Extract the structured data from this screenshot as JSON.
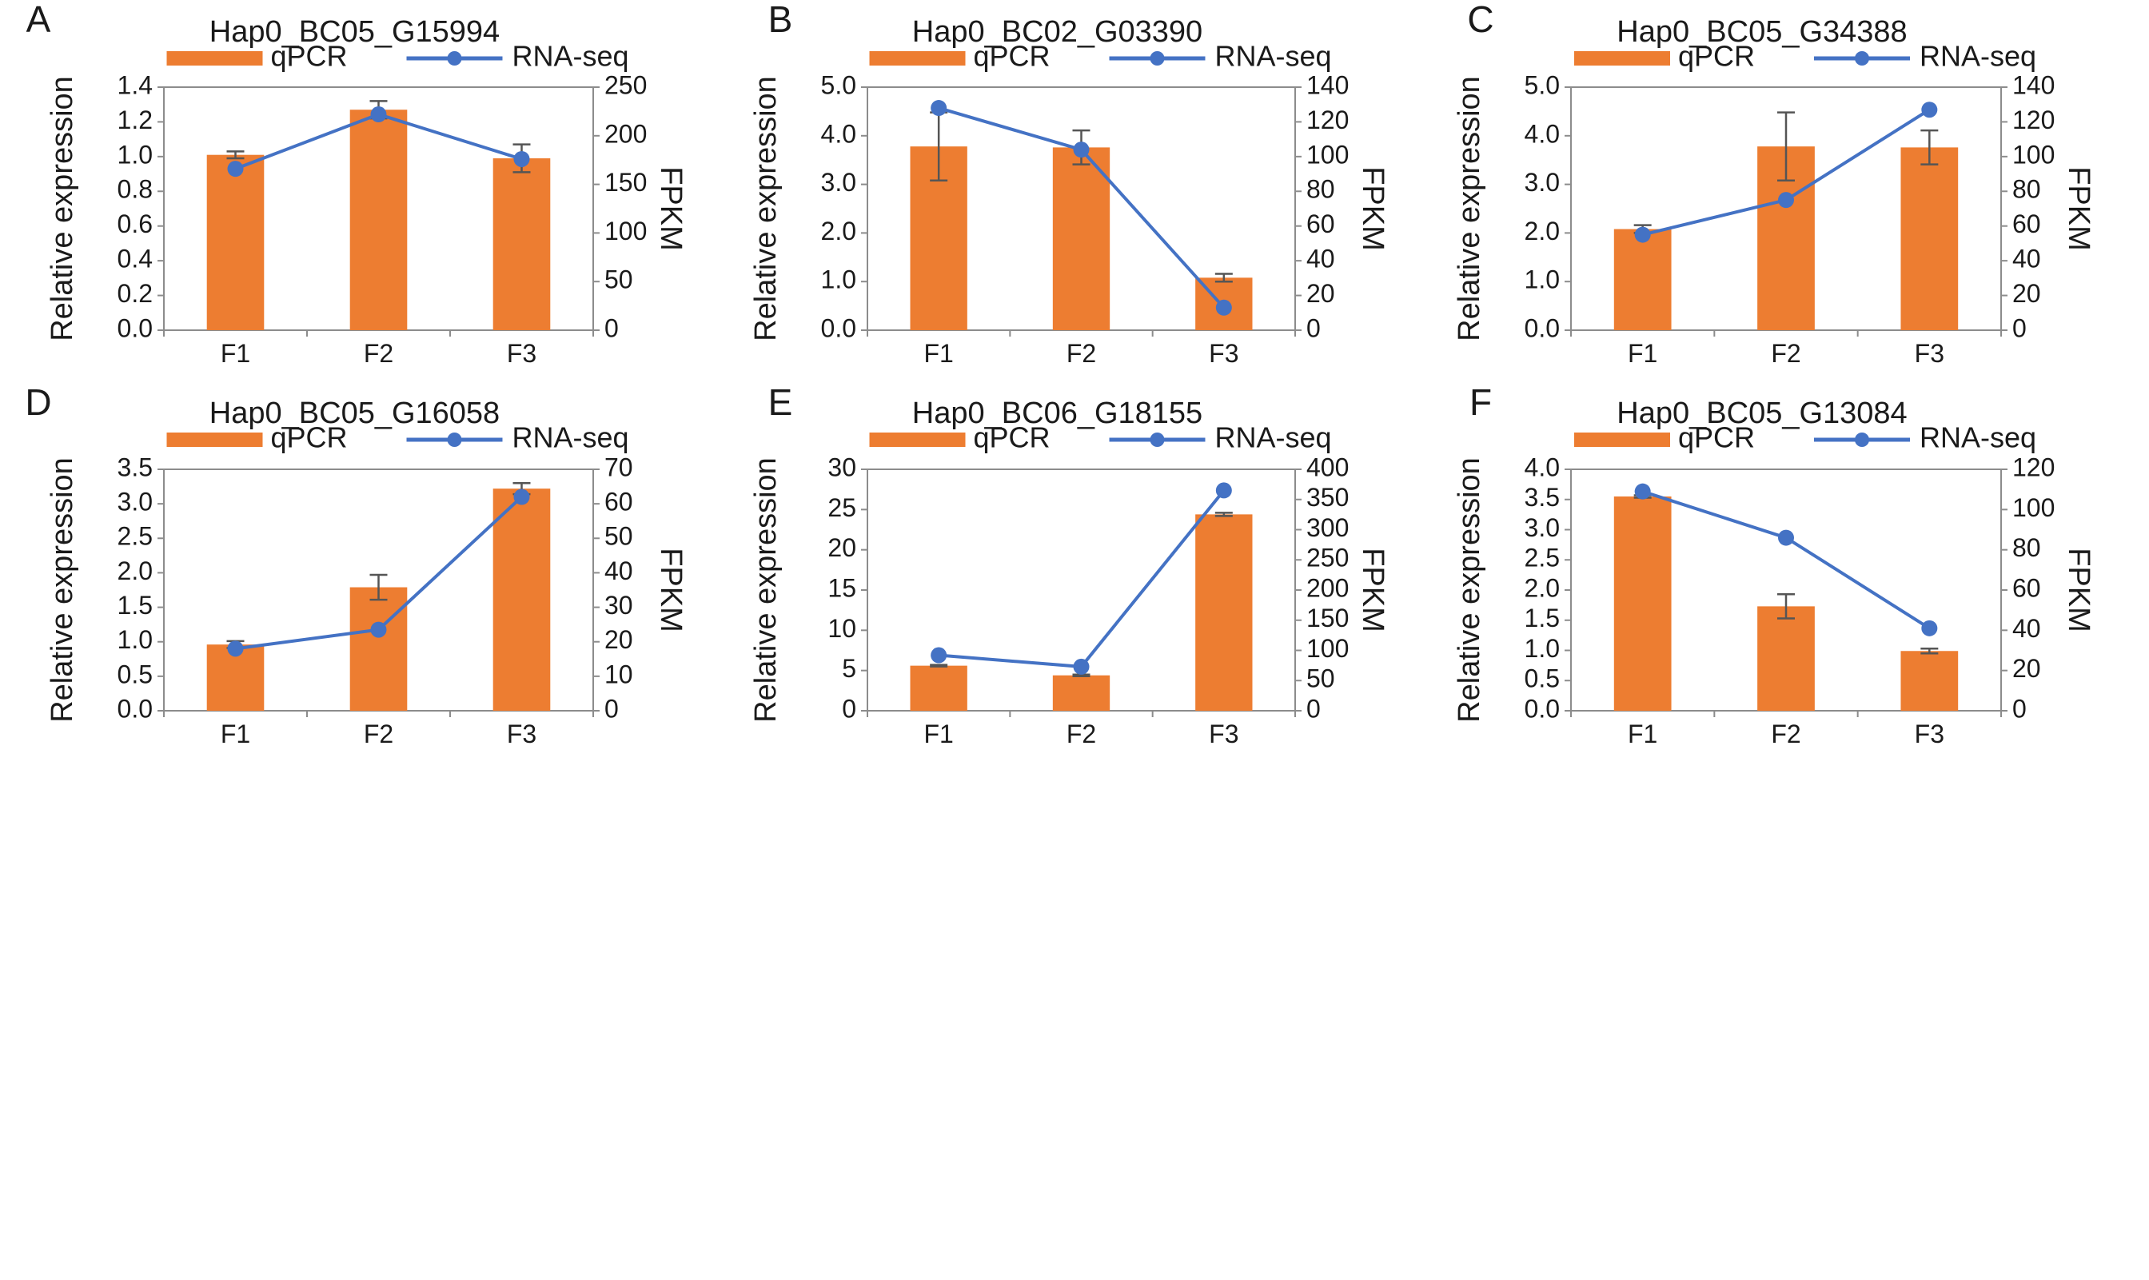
{
  "colors": {
    "qpcr": "#ED7D31",
    "rnaseq": "#4472C4",
    "error": "#555555"
  },
  "legend": {
    "qpcr_label": "qPCR",
    "rnaseq_label": "RNA-seq"
  },
  "chart_data": [
    {
      "panel": "A",
      "title": "Hap0_BC05_G15994",
      "type": "bar+line",
      "categories": [
        "F1",
        "F2",
        "F3"
      ],
      "xlabel": "",
      "ylabel": "Relative expression",
      "y2label": "FPKM",
      "ylim": [
        0,
        1.4
      ],
      "yticks": [
        0,
        0.2,
        0.4,
        0.6,
        0.8,
        1.0,
        1.2,
        1.4
      ],
      "ytick_labels": [
        "0.0",
        "0.2",
        "0.4",
        "0.6",
        "0.8",
        "1.0",
        "1.2",
        "1.4"
      ],
      "y2lim": [
        0,
        250
      ],
      "y2ticks": [
        0,
        50,
        100,
        150,
        200,
        250
      ],
      "y2tick_labels": [
        "0",
        "50",
        "100",
        "150",
        "200",
        "250"
      ],
      "series": [
        {
          "name": "qPCR",
          "kind": "bar",
          "axis": "left",
          "values": [
            1.01,
            1.27,
            0.99
          ],
          "errors": [
            0.02,
            0.05,
            0.08
          ]
        },
        {
          "name": "RNA-seq",
          "kind": "line",
          "axis": "right",
          "values": [
            166,
            222,
            176
          ]
        }
      ]
    },
    {
      "panel": "B",
      "title": "Hap0_BC02_G03390",
      "type": "bar+line",
      "categories": [
        "F1",
        "F2",
        "F3"
      ],
      "xlabel": "",
      "ylabel": "Relative expression",
      "y2label": "FPKM",
      "ylim": [
        0,
        5.0
      ],
      "yticks": [
        0,
        1,
        2,
        3,
        4,
        5
      ],
      "ytick_labels": [
        "0.0",
        "1.0",
        "2.0",
        "3.0",
        "4.0",
        "5.0"
      ],
      "y2lim": [
        0,
        140
      ],
      "y2ticks": [
        0,
        20,
        40,
        60,
        80,
        100,
        120,
        140
      ],
      "y2tick_labels": [
        "0",
        "20",
        "40",
        "60",
        "80",
        "100",
        "120",
        "140"
      ],
      "series": [
        {
          "name": "qPCR",
          "kind": "bar",
          "axis": "left",
          "values": [
            3.78,
            3.76,
            1.08
          ],
          "errors": [
            0.7,
            0.35,
            0.08
          ]
        },
        {
          "name": "RNA-seq",
          "kind": "line",
          "axis": "right",
          "values": [
            128,
            104,
            13
          ]
        }
      ]
    },
    {
      "panel": "C",
      "title": "Hap0_BC05_G34388",
      "type": "bar+line",
      "categories": [
        "F1",
        "F2",
        "F3"
      ],
      "xlabel": "",
      "ylabel": "Relative expression",
      "y2label": "FPKM",
      "ylim": [
        0,
        5.0
      ],
      "yticks": [
        0,
        1,
        2,
        3,
        4,
        5
      ],
      "ytick_labels": [
        "0.0",
        "1.0",
        "2.0",
        "3.0",
        "4.0",
        "5.0"
      ],
      "y2lim": [
        0,
        140
      ],
      "y2ticks": [
        0,
        20,
        40,
        60,
        80,
        100,
        120,
        140
      ],
      "y2tick_labels": [
        "0",
        "20",
        "40",
        "60",
        "80",
        "100",
        "120",
        "140"
      ],
      "series": [
        {
          "name": "qPCR",
          "kind": "bar",
          "axis": "left",
          "values": [
            2.08,
            3.78,
            3.76
          ],
          "errors": [
            0.08,
            0.7,
            0.35
          ]
        },
        {
          "name": "RNA-seq",
          "kind": "line",
          "axis": "right",
          "values": [
            55,
            75,
            127
          ]
        }
      ]
    },
    {
      "panel": "D",
      "title": "Hap0_BC05_G16058",
      "type": "bar+line",
      "categories": [
        "F1",
        "F2",
        "F3"
      ],
      "xlabel": "",
      "ylabel": "Relative expression",
      "y2label": "FPKM",
      "ylim": [
        0,
        3.5
      ],
      "yticks": [
        0,
        0.5,
        1.0,
        1.5,
        2.0,
        2.5,
        3.0,
        3.5
      ],
      "ytick_labels": [
        "0.0",
        "0.5",
        "1.0",
        "1.5",
        "2.0",
        "2.5",
        "3.0",
        "3.5"
      ],
      "y2lim": [
        0,
        70
      ],
      "y2ticks": [
        0,
        10,
        20,
        30,
        40,
        50,
        60,
        70
      ],
      "y2tick_labels": [
        "0",
        "10",
        "20",
        "30",
        "40",
        "50",
        "60",
        "70"
      ],
      "series": [
        {
          "name": "qPCR",
          "kind": "bar",
          "axis": "left",
          "values": [
            0.96,
            1.79,
            3.22
          ],
          "errors": [
            0.05,
            0.18,
            0.08
          ]
        },
        {
          "name": "RNA-seq",
          "kind": "line",
          "axis": "right",
          "values": [
            18,
            23.5,
            62
          ]
        }
      ]
    },
    {
      "panel": "E",
      "title": "Hap0_BC06_G18155",
      "type": "bar+line",
      "categories": [
        "F1",
        "F2",
        "F3"
      ],
      "xlabel": "",
      "ylabel": "Relative expression",
      "y2label": "FPKM",
      "ylim": [
        0,
        30
      ],
      "yticks": [
        0,
        5,
        10,
        15,
        20,
        25,
        30
      ],
      "ytick_labels": [
        "0",
        "5",
        "10",
        "15",
        "20",
        "25",
        "30"
      ],
      "y2lim": [
        0,
        400
      ],
      "y2ticks": [
        0,
        50,
        100,
        150,
        200,
        250,
        300,
        350,
        400
      ],
      "y2tick_labels": [
        "0",
        "50",
        "100",
        "150",
        "200",
        "250",
        "300",
        "350",
        "400"
      ],
      "series": [
        {
          "name": "qPCR",
          "kind": "bar",
          "axis": "left",
          "values": [
            5.6,
            4.4,
            24.4
          ],
          "errors": [
            0.1,
            0.1,
            0.2
          ]
        },
        {
          "name": "RNA-seq",
          "kind": "line",
          "axis": "right",
          "values": [
            92,
            73,
            365
          ]
        }
      ]
    },
    {
      "panel": "F",
      "title": "Hap0_BC05_G13084",
      "type": "bar+line",
      "categories": [
        "F1",
        "F2",
        "F3"
      ],
      "xlabel": "",
      "ylabel": "Relative expression",
      "y2label": "FPKM",
      "ylim": [
        0,
        4.0
      ],
      "yticks": [
        0,
        0.5,
        1.0,
        1.5,
        2.0,
        2.5,
        3.0,
        3.5,
        4.0
      ],
      "ytick_labels": [
        "0.0",
        "0.5",
        "1.0",
        "1.5",
        "2.0",
        "2.5",
        "3.0",
        "3.5",
        "4.0"
      ],
      "y2lim": [
        0,
        120
      ],
      "y2ticks": [
        0,
        20,
        40,
        60,
        80,
        100,
        120
      ],
      "y2tick_labels": [
        "0",
        "20",
        "40",
        "60",
        "80",
        "100",
        "120"
      ],
      "series": [
        {
          "name": "qPCR",
          "kind": "bar",
          "axis": "left",
          "values": [
            3.55,
            1.73,
            0.99
          ],
          "errors": [
            0.02,
            0.2,
            0.04
          ]
        },
        {
          "name": "RNA-seq",
          "kind": "line",
          "axis": "right",
          "values": [
            109,
            86,
            41
          ]
        }
      ]
    }
  ]
}
